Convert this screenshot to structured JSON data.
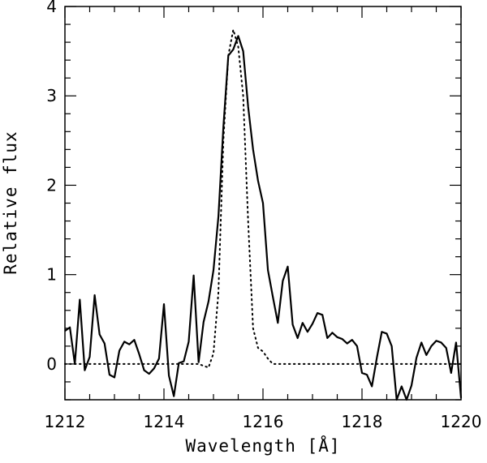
{
  "chart_data": {
    "type": "line",
    "title": "",
    "xlabel": "Wavelength [Å]",
    "ylabel": "Relative flux",
    "xlim": [
      1212,
      1220
    ],
    "ylim": [
      -0.4,
      4
    ],
    "x_ticks": [
      1212,
      1214,
      1216,
      1218,
      1220
    ],
    "y_ticks": [
      0,
      1,
      2,
      3,
      4
    ],
    "x_tick_labels": [
      "1212",
      "1214",
      "1216",
      "1218",
      "1220"
    ],
    "y_tick_labels": [
      "0",
      "1",
      "2",
      "3",
      "4"
    ],
    "grid": false,
    "legend": "none",
    "series": [
      {
        "style": "solid",
        "color": "#000000",
        "x": [
          1212.0,
          1212.1,
          1212.2,
          1212.3,
          1212.4,
          1212.5,
          1212.6,
          1212.7,
          1212.8,
          1212.9,
          1213.0,
          1213.1,
          1213.2,
          1213.3,
          1213.4,
          1213.5,
          1213.6,
          1213.7,
          1213.8,
          1213.9,
          1214.0,
          1214.1,
          1214.2,
          1214.3,
          1214.4,
          1214.5,
          1214.6,
          1214.7,
          1214.8,
          1214.9,
          1215.0,
          1215.1,
          1215.2,
          1215.3,
          1215.4,
          1215.5,
          1215.6,
          1215.7,
          1215.8,
          1215.9,
          1216.0,
          1216.1,
          1216.2,
          1216.3,
          1216.4,
          1216.5,
          1216.6,
          1216.7,
          1216.8,
          1216.9,
          1217.0,
          1217.1,
          1217.2,
          1217.3,
          1217.4,
          1217.5,
          1217.6,
          1217.7,
          1217.8,
          1217.9,
          1218.0,
          1218.1,
          1218.2,
          1218.3,
          1218.4,
          1218.5,
          1218.6,
          1218.7,
          1218.8,
          1218.9,
          1219.0,
          1219.1,
          1219.2,
          1219.3,
          1219.4,
          1219.5,
          1219.6,
          1219.7,
          1219.8,
          1219.9,
          1220.0
        ],
        "y": [
          0.37,
          0.41,
          0.0,
          0.72,
          -0.07,
          0.08,
          0.77,
          0.33,
          0.23,
          -0.12,
          -0.15,
          0.15,
          0.25,
          0.22,
          0.27,
          0.11,
          -0.07,
          -0.11,
          -0.05,
          0.06,
          0.67,
          -0.13,
          -0.36,
          0.01,
          0.03,
          0.25,
          0.99,
          0.02,
          0.47,
          0.7,
          1.05,
          1.65,
          2.65,
          3.45,
          3.52,
          3.67,
          3.5,
          2.88,
          2.4,
          2.05,
          1.8,
          1.05,
          0.75,
          0.46,
          0.93,
          1.09,
          0.44,
          0.29,
          0.46,
          0.36,
          0.45,
          0.57,
          0.55,
          0.29,
          0.35,
          0.3,
          0.28,
          0.23,
          0.27,
          0.2,
          -0.1,
          -0.12,
          -0.25,
          0.07,
          0.36,
          0.34,
          0.2,
          -0.43,
          -0.25,
          -0.42,
          -0.24,
          0.07,
          0.24,
          0.1,
          0.2,
          0.26,
          0.24,
          0.18,
          -0.1,
          0.24,
          -0.38
        ]
      },
      {
        "style": "dotted",
        "color": "#000000",
        "x": [
          1212.0,
          1213.0,
          1214.0,
          1214.7,
          1214.9,
          1215.0,
          1215.1,
          1215.2,
          1215.3,
          1215.4,
          1215.5,
          1215.6,
          1215.7,
          1215.8,
          1215.9,
          1216.0,
          1216.1,
          1216.2,
          1216.3,
          1217.0,
          1218.0,
          1219.0,
          1220.0
        ],
        "y": [
          0.0,
          0.0,
          0.0,
          0.0,
          -0.04,
          0.12,
          0.8,
          2.5,
          3.45,
          3.74,
          3.55,
          3.0,
          1.6,
          0.4,
          0.18,
          0.14,
          0.06,
          0.0,
          0.0,
          0.0,
          0.0,
          0.0,
          0.0
        ]
      }
    ]
  }
}
